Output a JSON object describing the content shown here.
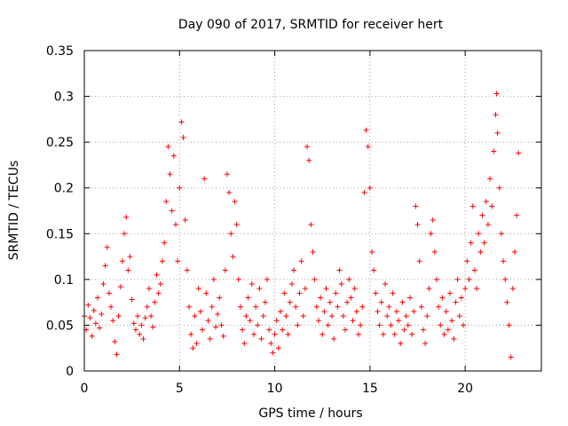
{
  "chart_data": {
    "type": "scatter",
    "title": "Day 090 of 2017, SRMTID for receiver hert",
    "xlabel": "GPS time / hours",
    "ylabel": "SRMTID / TECUs",
    "xlim": [
      0,
      24
    ],
    "ylim": [
      0,
      0.35
    ],
    "xticks": [
      0,
      5,
      10,
      15,
      20
    ],
    "xtick_labels": [
      "0",
      "5",
      "10",
      "15",
      "20"
    ],
    "yticks": [
      0,
      0.05,
      0.1,
      0.15,
      0.2,
      0.25,
      0.3,
      0.35
    ],
    "ytick_labels": [
      "0",
      "0.05",
      "0.1",
      "0.15",
      "0.2",
      "0.25",
      "0.3",
      "0.35"
    ],
    "grid": true,
    "marker": "plus",
    "color": "#ff0000",
    "series": [
      {
        "name": "SRMTID",
        "points": [
          [
            0.0,
            0.06
          ],
          [
            0.1,
            0.045
          ],
          [
            0.2,
            0.072
          ],
          [
            0.3,
            0.058
          ],
          [
            0.4,
            0.038
          ],
          [
            0.5,
            0.066
          ],
          [
            0.6,
            0.052
          ],
          [
            0.7,
            0.08
          ],
          [
            0.8,
            0.047
          ],
          [
            0.9,
            0.062
          ],
          [
            1.0,
            0.095
          ],
          [
            1.1,
            0.115
          ],
          [
            1.2,
            0.135
          ],
          [
            1.3,
            0.085
          ],
          [
            1.4,
            0.07
          ],
          [
            1.5,
            0.055
          ],
          [
            1.6,
            0.032
          ],
          [
            1.7,
            0.018
          ],
          [
            1.8,
            0.06
          ],
          [
            1.9,
            0.092
          ],
          [
            2.0,
            0.12
          ],
          [
            2.1,
            0.15
          ],
          [
            2.2,
            0.168
          ],
          [
            2.3,
            0.11
          ],
          [
            2.4,
            0.125
          ],
          [
            2.5,
            0.078
          ],
          [
            2.6,
            0.052
          ],
          [
            2.7,
            0.045
          ],
          [
            2.8,
            0.06
          ],
          [
            2.9,
            0.04
          ],
          [
            3.0,
            0.05
          ],
          [
            3.1,
            0.035
          ],
          [
            3.2,
            0.058
          ],
          [
            3.3,
            0.07
          ],
          [
            3.4,
            0.09
          ],
          [
            3.5,
            0.06
          ],
          [
            3.6,
            0.048
          ],
          [
            3.7,
            0.075
          ],
          [
            3.8,
            0.105
          ],
          [
            3.9,
            0.085
          ],
          [
            4.0,
            0.095
          ],
          [
            4.1,
            0.12
          ],
          [
            4.2,
            0.14
          ],
          [
            4.3,
            0.185
          ],
          [
            4.4,
            0.245
          ],
          [
            4.5,
            0.215
          ],
          [
            4.6,
            0.175
          ],
          [
            4.7,
            0.235
          ],
          [
            4.8,
            0.16
          ],
          [
            4.9,
            0.12
          ],
          [
            5.0,
            0.2
          ],
          [
            5.1,
            0.272
          ],
          [
            5.2,
            0.255
          ],
          [
            5.3,
            0.165
          ],
          [
            5.4,
            0.11
          ],
          [
            5.5,
            0.07
          ],
          [
            5.6,
            0.04
          ],
          [
            5.7,
            0.025
          ],
          [
            5.8,
            0.06
          ],
          [
            5.9,
            0.03
          ],
          [
            6.0,
            0.09
          ],
          [
            6.1,
            0.065
          ],
          [
            6.2,
            0.045
          ],
          [
            6.3,
            0.21
          ],
          [
            6.4,
            0.085
          ],
          [
            6.5,
            0.055
          ],
          [
            6.6,
            0.035
          ],
          [
            6.7,
            0.07
          ],
          [
            6.8,
            0.1
          ],
          [
            6.9,
            0.048
          ],
          [
            7.0,
            0.062
          ],
          [
            7.1,
            0.08
          ],
          [
            7.2,
            0.05
          ],
          [
            7.3,
            0.038
          ],
          [
            7.4,
            0.11
          ],
          [
            7.5,
            0.215
          ],
          [
            7.6,
            0.195
          ],
          [
            7.7,
            0.15
          ],
          [
            7.8,
            0.125
          ],
          [
            7.9,
            0.185
          ],
          [
            8.0,
            0.16
          ],
          [
            8.1,
            0.1
          ],
          [
            8.2,
            0.07
          ],
          [
            8.3,
            0.045
          ],
          [
            8.4,
            0.03
          ],
          [
            8.5,
            0.06
          ],
          [
            8.6,
            0.08
          ],
          [
            8.7,
            0.055
          ],
          [
            8.8,
            0.095
          ],
          [
            8.9,
            0.04
          ],
          [
            9.0,
            0.07
          ],
          [
            9.1,
            0.05
          ],
          [
            9.2,
            0.09
          ],
          [
            9.3,
            0.035
          ],
          [
            9.4,
            0.06
          ],
          [
            9.5,
            0.075
          ],
          [
            9.6,
            0.1
          ],
          [
            9.7,
            0.045
          ],
          [
            9.8,
            0.03
          ],
          [
            9.9,
            0.02
          ],
          [
            10.0,
            0.04
          ],
          [
            10.1,
            0.055
          ],
          [
            10.2,
            0.025
          ],
          [
            10.3,
            0.065
          ],
          [
            10.4,
            0.045
          ],
          [
            10.5,
            0.085
          ],
          [
            10.6,
            0.06
          ],
          [
            10.7,
            0.04
          ],
          [
            10.8,
            0.075
          ],
          [
            10.9,
            0.095
          ],
          [
            11.0,
            0.11
          ],
          [
            11.1,
            0.07
          ],
          [
            11.2,
            0.05
          ],
          [
            11.3,
            0.085
          ],
          [
            11.4,
            0.12
          ],
          [
            11.5,
            0.06
          ],
          [
            11.6,
            0.09
          ],
          [
            11.7,
            0.245
          ],
          [
            11.8,
            0.23
          ],
          [
            11.9,
            0.16
          ],
          [
            12.0,
            0.13
          ],
          [
            12.1,
            0.1
          ],
          [
            12.2,
            0.07
          ],
          [
            12.3,
            0.055
          ],
          [
            12.4,
            0.08
          ],
          [
            12.5,
            0.04
          ],
          [
            12.6,
            0.065
          ],
          [
            12.7,
            0.09
          ],
          [
            12.8,
            0.05
          ],
          [
            12.9,
            0.075
          ],
          [
            13.0,
            0.06
          ],
          [
            13.1,
            0.035
          ],
          [
            13.2,
            0.085
          ],
          [
            13.3,
            0.07
          ],
          [
            13.4,
            0.11
          ],
          [
            13.5,
            0.095
          ],
          [
            13.6,
            0.06
          ],
          [
            13.7,
            0.045
          ],
          [
            13.8,
            0.075
          ],
          [
            13.9,
            0.1
          ],
          [
            14.0,
            0.08
          ],
          [
            14.1,
            0.055
          ],
          [
            14.2,
            0.09
          ],
          [
            14.3,
            0.065
          ],
          [
            14.4,
            0.04
          ],
          [
            14.5,
            0.05
          ],
          [
            14.6,
            0.07
          ],
          [
            14.7,
            0.195
          ],
          [
            14.8,
            0.263
          ],
          [
            14.9,
            0.245
          ],
          [
            15.0,
            0.2
          ],
          [
            15.1,
            0.13
          ],
          [
            15.2,
            0.11
          ],
          [
            15.3,
            0.085
          ],
          [
            15.4,
            0.065
          ],
          [
            15.5,
            0.05
          ],
          [
            15.6,
            0.075
          ],
          [
            15.7,
            0.04
          ],
          [
            15.8,
            0.095
          ],
          [
            15.9,
            0.06
          ],
          [
            16.0,
            0.07
          ],
          [
            16.1,
            0.05
          ],
          [
            16.2,
            0.085
          ],
          [
            16.3,
            0.04
          ],
          [
            16.4,
            0.065
          ],
          [
            16.5,
            0.055
          ],
          [
            16.6,
            0.03
          ],
          [
            16.7,
            0.075
          ],
          [
            16.8,
            0.045
          ],
          [
            16.9,
            0.06
          ],
          [
            17.0,
            0.05
          ],
          [
            17.1,
            0.08
          ],
          [
            17.2,
            0.04
          ],
          [
            17.3,
            0.065
          ],
          [
            17.4,
            0.18
          ],
          [
            17.5,
            0.16
          ],
          [
            17.6,
            0.12
          ],
          [
            17.7,
            0.07
          ],
          [
            17.8,
            0.045
          ],
          [
            17.9,
            0.03
          ],
          [
            18.0,
            0.06
          ],
          [
            18.1,
            0.09
          ],
          [
            18.2,
            0.15
          ],
          [
            18.3,
            0.165
          ],
          [
            18.4,
            0.13
          ],
          [
            18.5,
            0.1
          ],
          [
            18.6,
            0.07
          ],
          [
            18.7,
            0.05
          ],
          [
            18.8,
            0.08
          ],
          [
            18.9,
            0.04
          ],
          [
            19.0,
            0.065
          ],
          [
            19.1,
            0.045
          ],
          [
            19.2,
            0.085
          ],
          [
            19.3,
            0.055
          ],
          [
            19.4,
            0.035
          ],
          [
            19.5,
            0.075
          ],
          [
            19.6,
            0.1
          ],
          [
            19.7,
            0.06
          ],
          [
            19.8,
            0.08
          ],
          [
            19.9,
            0.05
          ],
          [
            20.0,
            0.09
          ],
          [
            20.1,
            0.12
          ],
          [
            20.2,
            0.1
          ],
          [
            20.3,
            0.14
          ],
          [
            20.4,
            0.18
          ],
          [
            20.5,
            0.11
          ],
          [
            20.6,
            0.09
          ],
          [
            20.7,
            0.15
          ],
          [
            20.8,
            0.13
          ],
          [
            20.9,
            0.17
          ],
          [
            21.0,
            0.14
          ],
          [
            21.1,
            0.185
          ],
          [
            21.2,
            0.16
          ],
          [
            21.3,
            0.21
          ],
          [
            21.4,
            0.18
          ],
          [
            21.5,
            0.24
          ],
          [
            21.6,
            0.28
          ],
          [
            21.65,
            0.303
          ],
          [
            21.7,
            0.26
          ],
          [
            21.8,
            0.2
          ],
          [
            21.9,
            0.15
          ],
          [
            22.0,
            0.12
          ],
          [
            22.1,
            0.1
          ],
          [
            22.2,
            0.075
          ],
          [
            22.3,
            0.05
          ],
          [
            22.4,
            0.015
          ],
          [
            22.5,
            0.09
          ],
          [
            22.6,
            0.13
          ],
          [
            22.7,
            0.17
          ],
          [
            22.8,
            0.238
          ]
        ]
      }
    ]
  }
}
